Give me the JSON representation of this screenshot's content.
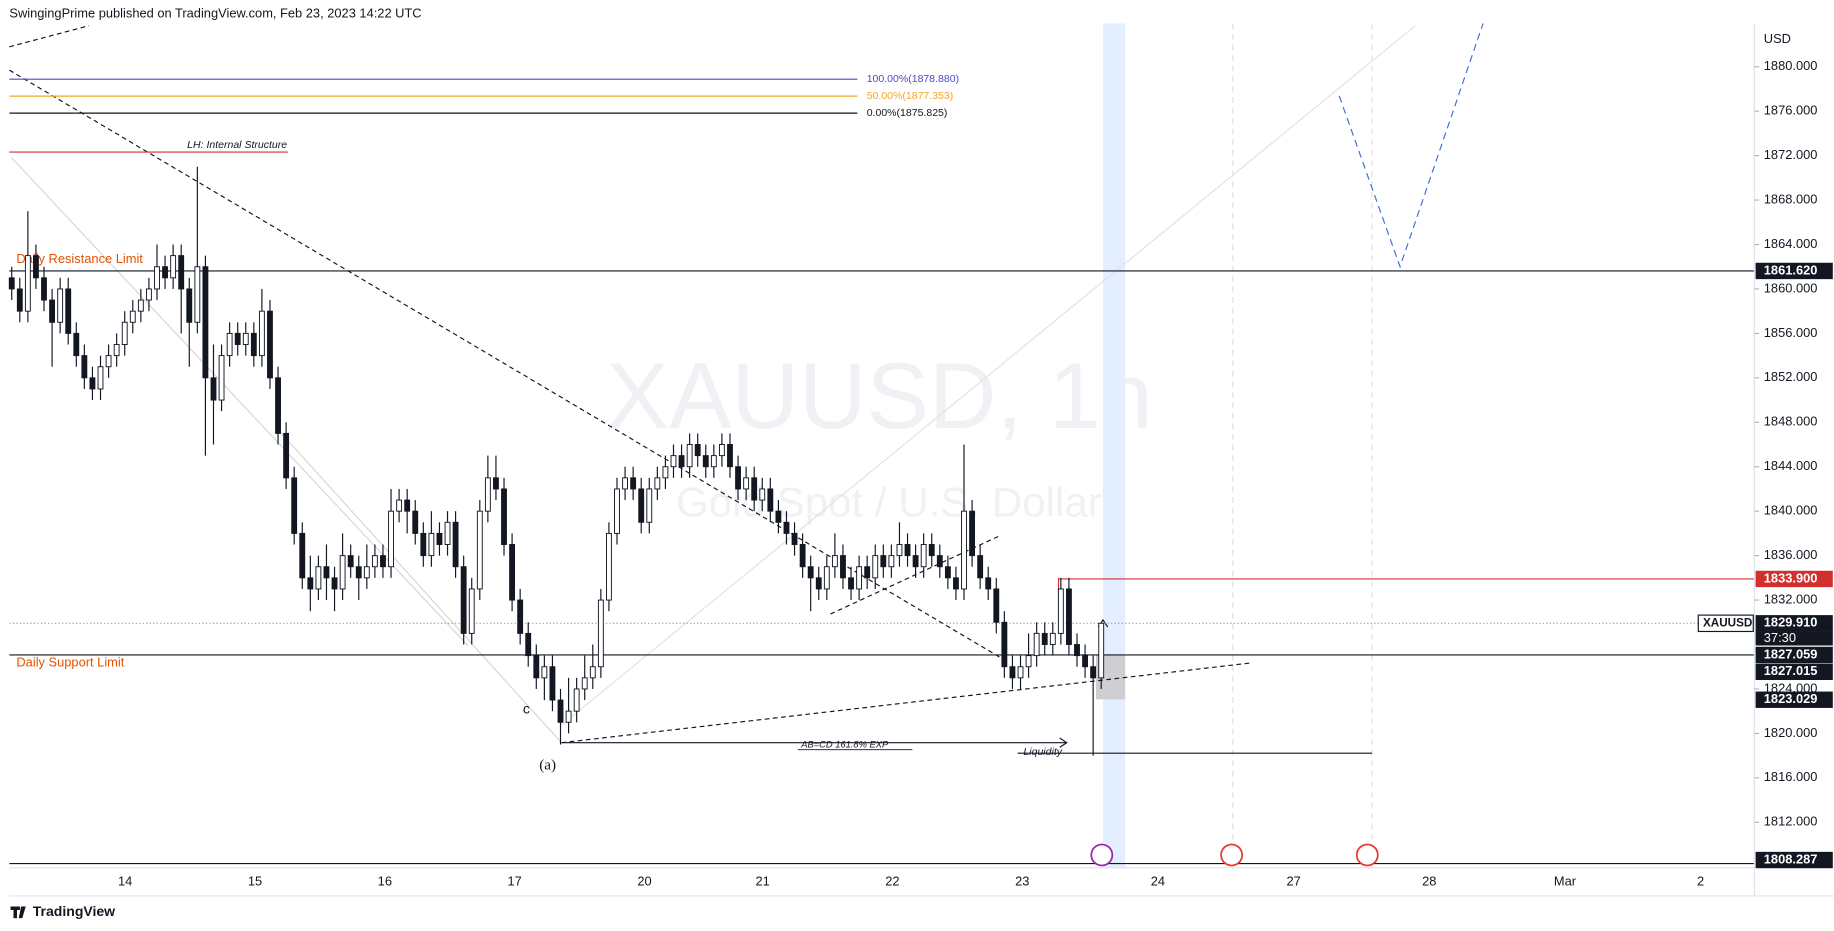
{
  "header": "SwingingPrime published on TradingView.com, Feb 23, 2023 14:22 UTC",
  "chart_data": {
    "type": "candlestick",
    "title": "XAUUSD, 1h",
    "subtitle": "Gold Spot / U.S. Dollar",
    "y_axis_label": "USD",
    "xtick_labels": [
      "14",
      "15",
      "16",
      "17",
      "20",
      "21",
      "22",
      "23",
      "24",
      "27",
      "28",
      "Mar",
      "2"
    ],
    "open": [
      1861,
      1860,
      1858,
      1863,
      1861,
      1859,
      1857,
      1860,
      1856,
      1854,
      1852,
      1851,
      1853,
      1854,
      1855,
      1857,
      1858,
      1859,
      1860,
      1862,
      1861,
      1863,
      1860,
      1857,
      1862,
      1852,
      1850,
      1854,
      1856,
      1855,
      1856,
      1854,
      1858,
      1852,
      1847,
      1843,
      1838,
      1834,
      1833,
      1835,
      1834,
      1833,
      1836,
      1835,
      1834,
      1835,
      1836,
      1835,
      1840,
      1841,
      1840,
      1838,
      1836,
      1838,
      1837,
      1839,
      1835,
      1829,
      1833,
      1840,
      1843,
      1842,
      1837,
      1832,
      1829,
      1827,
      1825,
      1826,
      1823,
      1821,
      1822,
      1824,
      1825,
      1826,
      1832,
      1838,
      1842,
      1843,
      1842,
      1839,
      1842,
      1843,
      1844,
      1845,
      1844,
      1846,
      1845,
      1844,
      1845,
      1846,
      1844,
      1842,
      1843,
      1841,
      1842,
      1840,
      1839,
      1838,
      1837,
      1835,
      1834,
      1833,
      1835,
      1836,
      1834,
      1833,
      1835,
      1834,
      1836,
      1835,
      1836,
      1837,
      1836,
      1835,
      1837,
      1836,
      1835,
      1834,
      1833,
      1840,
      1836,
      1834,
      1833,
      1830,
      1826,
      1825,
      1826,
      1827,
      1829,
      1828,
      1829,
      1833,
      1828,
      1827,
      1826,
      1825
    ],
    "high": [
      1862,
      1861,
      1867,
      1864,
      1862,
      1860,
      1861,
      1861,
      1857,
      1855,
      1853,
      1854,
      1855,
      1856,
      1858,
      1859,
      1860,
      1861,
      1864,
      1863,
      1864,
      1864,
      1861,
      1871,
      1863,
      1855,
      1855,
      1857,
      1857,
      1857,
      1857,
      1860,
      1859,
      1853,
      1848,
      1844,
      1839,
      1836,
      1836,
      1837,
      1835,
      1838,
      1837,
      1836,
      1837,
      1837,
      1837,
      1842,
      1842,
      1842,
      1841,
      1839,
      1840,
      1839,
      1840,
      1840,
      1836,
      1834,
      1841,
      1845,
      1845,
      1843,
      1838,
      1833,
      1830,
      1828,
      1827,
      1827,
      1824,
      1825,
      1825,
      1827,
      1828,
      1833,
      1839,
      1843,
      1844,
      1844,
      1843,
      1843,
      1844,
      1845,
      1846,
      1846,
      1847,
      1847,
      1846,
      1846,
      1847,
      1847,
      1845,
      1844,
      1844,
      1843,
      1843,
      1841,
      1840,
      1839,
      1838,
      1836,
      1835,
      1836,
      1838,
      1837,
      1835,
      1836,
      1836,
      1837,
      1837,
      1837,
      1839,
      1838,
      1837,
      1838,
      1838,
      1837,
      1836,
      1835,
      1846,
      1841,
      1837,
      1835,
      1834,
      1831,
      1827,
      1827,
      1829,
      1830,
      1830,
      1830,
      1834,
      1834,
      1829,
      1828,
      1827,
      1830
    ],
    "low": [
      1859,
      1857,
      1857,
      1860,
      1858,
      1853,
      1856,
      1855,
      1853,
      1851,
      1850,
      1850,
      1852,
      1853,
      1854,
      1856,
      1857,
      1858,
      1859,
      1860,
      1860,
      1856,
      1853,
      1856,
      1845,
      1846,
      1849,
      1853,
      1854,
      1854,
      1853,
      1853,
      1851,
      1846,
      1842,
      1837,
      1833,
      1831,
      1832,
      1832,
      1831,
      1832,
      1834,
      1832,
      1833,
      1834,
      1834,
      1834,
      1839,
      1838,
      1837,
      1835,
      1835,
      1836,
      1836,
      1834,
      1828,
      1828,
      1832,
      1839,
      1841,
      1836,
      1831,
      1828,
      1826,
      1824,
      1823,
      1822,
      1819,
      1820,
      1821,
      1823,
      1824,
      1825,
      1831,
      1837,
      1841,
      1841,
      1838,
      1838,
      1841,
      1842,
      1843,
      1843,
      1843,
      1844,
      1843,
      1843,
      1844,
      1843,
      1841,
      1841,
      1840,
      1840,
      1839,
      1838,
      1837,
      1836,
      1834,
      1831,
      1832,
      1832,
      1834,
      1833,
      1832,
      1832,
      1833,
      1833,
      1834,
      1834,
      1835,
      1835,
      1834,
      1834,
      1835,
      1834,
      1833,
      1832,
      1832,
      1835,
      1833,
      1832,
      1829,
      1825,
      1824,
      1824,
      1825,
      1826,
      1827,
      1827,
      1828,
      1827,
      1826,
      1825,
      1818,
      1824
    ],
    "close": [
      1860,
      1858,
      1863,
      1861,
      1859,
      1857,
      1860,
      1856,
      1854,
      1852,
      1851,
      1853,
      1854,
      1855,
      1857,
      1858,
      1859,
      1860,
      1862,
      1861,
      1863,
      1860,
      1857,
      1862,
      1852,
      1850,
      1854,
      1856,
      1855,
      1856,
      1854,
      1858,
      1852,
      1847,
      1843,
      1838,
      1834,
      1833,
      1835,
      1834,
      1833,
      1836,
      1835,
      1834,
      1835,
      1836,
      1835,
      1840,
      1841,
      1840,
      1838,
      1836,
      1838,
      1837,
      1839,
      1835,
      1829,
      1833,
      1840,
      1843,
      1842,
      1837,
      1832,
      1829,
      1827,
      1825,
      1826,
      1823,
      1821,
      1822,
      1824,
      1825,
      1826,
      1832,
      1838,
      1842,
      1843,
      1842,
      1839,
      1842,
      1843,
      1844,
      1845,
      1844,
      1846,
      1845,
      1844,
      1845,
      1846,
      1844,
      1842,
      1843,
      1841,
      1842,
      1840,
      1839,
      1838,
      1837,
      1835,
      1834,
      1833,
      1835,
      1836,
      1834,
      1833,
      1835,
      1834,
      1836,
      1835,
      1836,
      1837,
      1836,
      1835,
      1837,
      1836,
      1835,
      1834,
      1833,
      1840,
      1836,
      1834,
      1833,
      1830,
      1826,
      1825,
      1826,
      1827,
      1829,
      1828,
      1829,
      1833,
      1828,
      1827,
      1826,
      1825,
      1829.91
    ],
    "colors": {
      "up": "#ffffff",
      "down": "#131722",
      "wick": "#131722"
    },
    "ylim": [
      1807.9,
      1883.9
    ],
    "yticks": [
      {
        "value": 1812,
        "label": "1812.000"
      },
      {
        "value": 1816,
        "label": "1816.000"
      },
      {
        "value": 1820,
        "label": "1820.000"
      },
      {
        "value": 1824,
        "label": "1824.000"
      },
      {
        "value": 1832,
        "label": "1832.000"
      },
      {
        "value": 1836,
        "label": "1836.000"
      },
      {
        "value": 1840,
        "label": "1840.000"
      },
      {
        "value": 1844,
        "label": "1844.000"
      },
      {
        "value": 1848,
        "label": "1848.000"
      },
      {
        "value": 1852,
        "label": "1852.000"
      },
      {
        "value": 1856,
        "label": "1856.000"
      },
      {
        "value": 1860,
        "label": "1860.000"
      },
      {
        "value": 1864,
        "label": "1864.000"
      },
      {
        "value": 1868,
        "label": "1868.000"
      },
      {
        "value": 1872,
        "label": "1872.000"
      },
      {
        "value": 1876,
        "label": "1876.000"
      },
      {
        "value": 1880,
        "label": "1880.000"
      }
    ],
    "price_labels": [
      {
        "value": 1861.62,
        "label": "1861.620",
        "color": "#131722"
      },
      {
        "value": 1833.9,
        "label": "1833.900",
        "color": "#d32f2f"
      },
      {
        "value": 1829.91,
        "label": "1829.910",
        "color": "#131722"
      },
      {
        "value": 1827.059,
        "label": "1827.059",
        "color": "#131722"
      },
      {
        "value": 1827.015,
        "label": "1827.015",
        "color": "#131722"
      },
      {
        "value": 1823.029,
        "label": "1823.029",
        "color": "#131722"
      },
      {
        "value": 1808.287,
        "label": "1808.287",
        "color": "#131722"
      }
    ],
    "symbol_label": "XAUUSD",
    "countdown": "37:30",
    "fib_levels": [
      {
        "value": 1878.88,
        "label": "100.00%(1878.880)",
        "color": "#4a4ac4"
      },
      {
        "value": 1877.353,
        "label": "50.00%(1877.353)",
        "color": "#f5a623"
      },
      {
        "value": 1875.825,
        "label": "0.00%(1875.825)",
        "color": "#131722"
      }
    ],
    "annotations": [
      "LH: Internal Structure",
      "Daily Resistance Limit",
      "Daily Support Limit",
      "c",
      "(a)",
      "AB=CD 161.8% EXP",
      "Liquidity"
    ]
  },
  "footer": "TradingView"
}
